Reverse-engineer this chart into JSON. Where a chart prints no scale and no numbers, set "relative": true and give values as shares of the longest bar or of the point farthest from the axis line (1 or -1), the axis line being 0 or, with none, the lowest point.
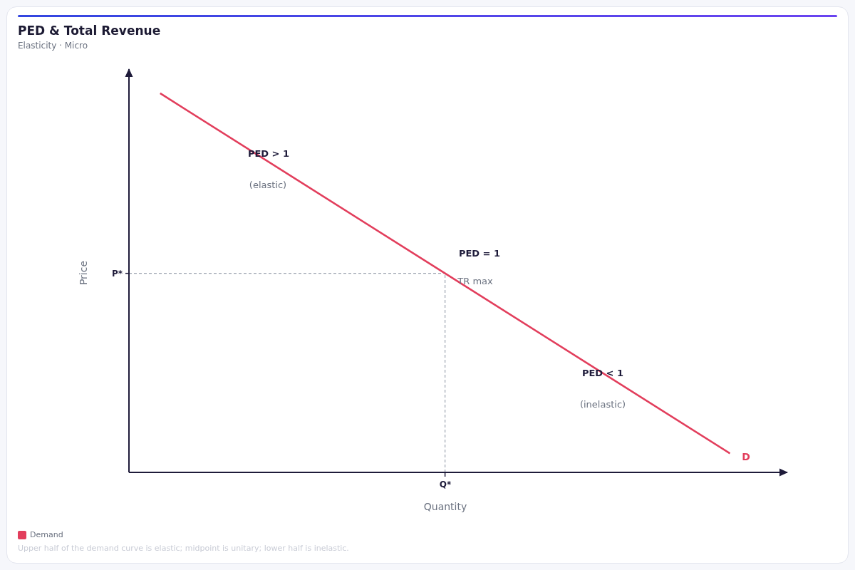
{
  "chart_data": {
    "type": "line",
    "title": "PED & Total Revenue",
    "subtitle": "Elasticity · Micro",
    "xlabel": "Quantity",
    "ylabel": "Price",
    "categories": [
      null,
      null,
      null
    ],
    "relative": true,
    "series": [
      {
        "name": "Demand",
        "color": "#e23e5c",
        "values": [
          1,
          0.525,
          0.05
        ]
      }
    ],
    "ref_lines": [
      {
        "axis": "y",
        "value": 0.525,
        "label": "P*",
        "color": "#9ca3af",
        "line_style": "dashed"
      }
    ],
    "annotations": [
      "PED > 1",
      "(elastic)",
      "PED = 1",
      "TR max",
      "PED < 1",
      "(inelastic)",
      "D",
      "Q*",
      "Upper half of the demand curve is elastic; midpoint is unitary; lower half is inelastic."
    ],
    "legend": "bottom left",
    "marker": "none",
    "line_style": "solid"
  }
}
